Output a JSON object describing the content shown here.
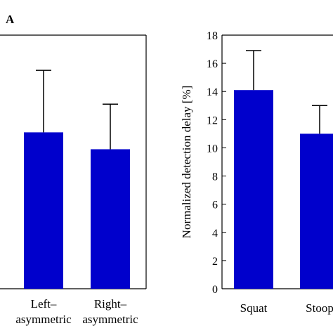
{
  "panel_label": "A",
  "chart_data": [
    {
      "type": "bar",
      "categories": [
        "Left–\nasymmetric",
        "Right–\nasymmetric"
      ],
      "category_lines": [
        [
          "Left–",
          "asymmetric"
        ],
        [
          "Right–",
          "asymmetric"
        ]
      ],
      "values": [
        11.1,
        9.9
      ],
      "errors": [
        4.4,
        3.2
      ],
      "ylim": [
        0,
        18
      ],
      "bar_color": "#0000cc",
      "grid": false
    },
    {
      "type": "bar",
      "categories": [
        "Squat",
        "Stoop"
      ],
      "values": [
        14.1,
        11.0
      ],
      "errors": [
        2.8,
        2.0
      ],
      "ylabel": "Normalized detection delay [%]",
      "yticks": [
        "0",
        "2",
        "4",
        "6",
        "8",
        "10",
        "12",
        "14",
        "16",
        "18"
      ],
      "ylim": [
        0,
        18
      ],
      "bar_color": "#0000cc",
      "grid": false
    }
  ]
}
